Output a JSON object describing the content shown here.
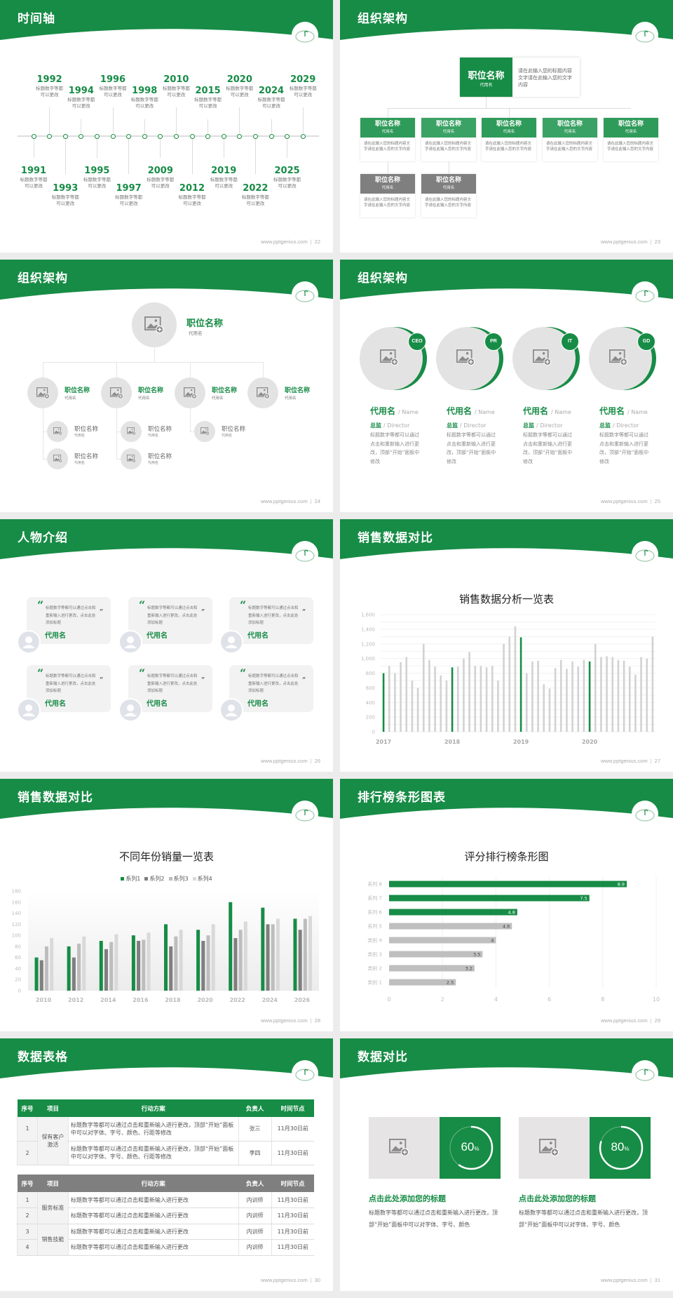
{
  "footer_url": "www.pptgenius.com",
  "colors": {
    "brand_green": "#178c46",
    "gray_dark": "#7f7f7f",
    "gray_light": "#e4e3e3",
    "background": "#ececec"
  },
  "slides": [
    {
      "title": "时间轴",
      "page": "22",
      "timeline": [
        {
          "year": "1991",
          "text": "标题数字等都可以更改"
        },
        {
          "year": "1992",
          "text": "标题数字等都可以更改"
        },
        {
          "year": "1993",
          "text": "标题数字等都可以更改"
        },
        {
          "year": "1994",
          "text": "标题数字等都可以更改"
        },
        {
          "year": "1995",
          "text": "标题数字等都可以更改"
        },
        {
          "year": "1996",
          "text": "标题数字等都可以更改"
        },
        {
          "year": "1997",
          "text": "标题数字等都可以更改"
        },
        {
          "year": "1998",
          "text": "标题数字等都可以更改"
        },
        {
          "year": "2009",
          "text": "标题数字等都可以更改"
        },
        {
          "year": "2010",
          "text": "标题数字等都可以更改"
        },
        {
          "year": "2012",
          "text": "标题数字等都可以更改"
        },
        {
          "year": "2015",
          "text": "标题数字等都可以更改"
        },
        {
          "year": "2019",
          "text": "标题数字等都可以更改"
        },
        {
          "year": "2020",
          "text": "标题数字等都可以更改"
        },
        {
          "year": "2022",
          "text": "标题数字等都可以更改"
        },
        {
          "year": "2024",
          "text": "标题数字等都可以更改"
        },
        {
          "year": "2025",
          "text": "标题数字等都可以更改"
        },
        {
          "year": "2029",
          "text": "标题数字等都可以更改"
        }
      ]
    },
    {
      "title": "组织架构",
      "page": "23",
      "top": {
        "title": "职位名称",
        "sub": "代用名",
        "desc": "请在此输入您的标题内容文字请在此输入您的文字内容"
      },
      "children": [
        {
          "title": "职位名称",
          "sub": "代用名",
          "desc": "请在此输入您的标题内容文字请在此输入您的文字内容"
        },
        {
          "title": "职位名称",
          "sub": "代用名",
          "desc": "请在此输入您的标题内容文字请在此输入您的文字内容"
        },
        {
          "title": "职位名称",
          "sub": "代用名",
          "desc": "请在此输入您的标题内容文字请在此输入您的文字内容"
        },
        {
          "title": "职位名称",
          "sub": "代用名",
          "desc": "请在此输入您的标题内容文字请在此输入您的文字内容"
        },
        {
          "title": "职位名称",
          "sub": "代用名",
          "desc": "请在此输入您的标题内容文字请在此输入您的文字内容"
        },
        {
          "title": "职位名称",
          "sub": "代用名",
          "desc": "请在此输入您的标题内容文字请在此输入您的文字内容"
        },
        {
          "title": "职位名称",
          "sub": "代用名",
          "desc": "请在此输入您的标题内容文字请在此输入您的文字内容"
        }
      ]
    },
    {
      "title": "组织架构",
      "page": "24",
      "top": {
        "title": "职位名称",
        "sub": "代用名"
      },
      "level2": [
        {
          "title": "职位名称",
          "sub": "代用名"
        },
        {
          "title": "职位名称",
          "sub": "代用名"
        },
        {
          "title": "职位名称",
          "sub": "代用名"
        },
        {
          "title": "职位名称",
          "sub": "代用名"
        }
      ],
      "level3": [
        {
          "title": "职位名称",
          "sub": "代用名"
        },
        {
          "title": "职位名称",
          "sub": "代用名"
        },
        {
          "title": "职位名称",
          "sub": "代用名"
        },
        {
          "title": "职位名称",
          "sub": "代用名"
        },
        {
          "title": "职位名称",
          "sub": "代用名"
        }
      ]
    },
    {
      "title": "组织架构",
      "page": "25",
      "people": [
        {
          "badge": "CEO",
          "name": "代用名",
          "name_en": "/ Name",
          "role": "总监",
          "role_en": "/  Director",
          "desc": "标题数字等都可以通过点击和重新输入进行更改，顶部“开始”面板中修改"
        },
        {
          "badge": "PR",
          "name": "代用名",
          "name_en": "/ Name",
          "role": "总监",
          "role_en": "/  Director",
          "desc": "标题数字等都可以通过点击和重新输入进行更改，顶部“开始”面板中修改"
        },
        {
          "badge": "IT",
          "name": "代用名",
          "name_en": "/ Name",
          "role": "总监",
          "role_en": "/  Director",
          "desc": "标题数字等都可以通过点击和重新输入进行更改，顶部“开始”面板中修改"
        },
        {
          "badge": "GD",
          "name": "代用名",
          "name_en": "/ Name",
          "role": "总监",
          "role_en": "/  Director",
          "desc": "标题数字等都可以通过点击和重新输入进行更改，顶部“开始”面板中修改"
        }
      ]
    },
    {
      "title": "人物介绍",
      "page": "26",
      "cards": [
        {
          "text": "标题数字等都可以通过点击和重新输入进行更改，点击此处添加标题",
          "name": "代用名"
        },
        {
          "text": "标题数字等都可以通过点击和重新输入进行更改，点击此处添加标题",
          "name": "代用名"
        },
        {
          "text": "标题数字等都可以通过点击和重新输入进行更改，点击此处添加标题",
          "name": "代用名"
        },
        {
          "text": "标题数字等都可以通过点击和重新输入进行更改，点击此处添加标题",
          "name": "代用名"
        },
        {
          "text": "标题数字等都可以通过点击和重新输入进行更改，点击此处添加标题",
          "name": "代用名"
        },
        {
          "text": "标题数字等都可以通过点击和重新输入进行更改，点击此处添加标题",
          "name": "代用名"
        }
      ]
    },
    {
      "title": "销售数据对比",
      "page": "27"
    },
    {
      "title": "销售数据对比",
      "page": "28"
    },
    {
      "title": "排行榜条形图表",
      "page": "29"
    },
    {
      "title": "数据表格",
      "page": "30",
      "table1": {
        "headers": [
          "序号",
          "项目",
          "行动方案",
          "负责人",
          "时间节点"
        ],
        "group": "保有客户激活",
        "rows": [
          {
            "no": "1",
            "plan": "标题数字等都可以通过点击和重新输入进行更改，顶部“开始”面板中可以对字体、字号、颜色、行距等修改",
            "owner": "张三",
            "date": "11月30日前"
          },
          {
            "no": "2",
            "plan": "标题数字等都可以通过点击和重新输入进行更改，顶部“开始”面板中可以对字体、字号、颜色、行距等修改",
            "owner": "李四",
            "date": "11月30日前"
          }
        ]
      },
      "table2": {
        "headers": [
          "序号",
          "项目",
          "行动方案",
          "负责人",
          "时间节点"
        ],
        "groups": [
          "服务标准",
          "销售技能"
        ],
        "rows": [
          {
            "no": "1",
            "plan": "标题数字等都可以通过点击和重新输入进行更改",
            "owner": "内训师",
            "date": "11月30日前"
          },
          {
            "no": "2",
            "plan": "标题数字等都可以通过点击和重新输入进行更改",
            "owner": "内训师",
            "date": "11月30日前"
          },
          {
            "no": "3",
            "plan": "标题数字等都可以通过点击和重新输入进行更改",
            "owner": "内训师",
            "date": "11月30日前"
          },
          {
            "no": "4",
            "plan": "标题数字等都可以通过点击和重新输入进行更改",
            "owner": "内训师",
            "date": "11月30日前"
          }
        ]
      }
    },
    {
      "title": "数据对比",
      "page": "31",
      "items": [
        {
          "percent": 60,
          "value": "60",
          "unit": "%",
          "heading": "点击此处添加您的标题",
          "desc": "标题数字等都可以通过点击和重新输入进行更改，顶部“开始”面板中可以对字体、字号、颜色"
        },
        {
          "percent": 80,
          "value": "80",
          "unit": "%",
          "heading": "点击此处添加您的标题",
          "desc": "标题数字等都可以通过点击和重新输入进行更改，顶部“开始”面板中可以对字体、字号、颜色"
        }
      ]
    }
  ],
  "chart_data": [
    {
      "type": "bar",
      "title": "销售数据分析一览表",
      "x_tick_labels": [
        "2017",
        "2018",
        "2019",
        "2020"
      ],
      "values": [
        800,
        900,
        800,
        950,
        1020,
        700,
        600,
        1200,
        980,
        890,
        770,
        700,
        880,
        890,
        1000,
        1090,
        900,
        900,
        880,
        900,
        700,
        1200,
        1300,
        1440,
        1290,
        800,
        960,
        970,
        650,
        590,
        870,
        980,
        860,
        960,
        890,
        980,
        960,
        1200,
        1020,
        1030,
        1020,
        980,
        970,
        890,
        780,
        1020,
        1000,
        1300
      ],
      "highlighted_indices": [
        0,
        12,
        24,
        36
      ],
      "colors": {
        "highlight": "#178c46",
        "default": "#d2d2d2"
      },
      "ylim": [
        0,
        1600
      ],
      "y_ticks": [
        "0",
        "200",
        "400",
        "600",
        "800",
        "1,000",
        "1,200",
        "1,400",
        "1,600"
      ],
      "grid": true
    },
    {
      "type": "bar",
      "title": "不同年份销量一览表",
      "categories": [
        "2010",
        "2012",
        "2014",
        "2016",
        "2018",
        "2020",
        "2022",
        "2024",
        "2026"
      ],
      "series": [
        {
          "name": "系列1",
          "color": "#178c46",
          "values": [
            60,
            80,
            90,
            100,
            120,
            110,
            160,
            150,
            130
          ]
        },
        {
          "name": "系列2",
          "color": "#7f7f7f",
          "values": [
            55,
            60,
            75,
            90,
            80,
            90,
            95,
            120,
            110
          ]
        },
        {
          "name": "系列3",
          "color": "#bdbdbd",
          "values": [
            80,
            85,
            88,
            92,
            98,
            100,
            110,
            120,
            130
          ]
        },
        {
          "name": "系列4",
          "color": "#d9d9d9",
          "values": [
            95,
            98,
            102,
            105,
            110,
            120,
            125,
            130,
            135
          ]
        }
      ],
      "ylim": [
        0,
        180
      ],
      "y_ticks": [
        "0",
        "20",
        "40",
        "60",
        "80",
        "100",
        "120",
        "140",
        "160",
        "180"
      ],
      "legend": "top"
    },
    {
      "type": "bar",
      "orientation": "horizontal",
      "title": "评分排行榜条形图",
      "categories": [
        "系列 8",
        "系列 7",
        "系列 6",
        "系列 5",
        "类别 4",
        "类别 3",
        "类别 2",
        "类别 1"
      ],
      "values": [
        8.9,
        7.5,
        4.8,
        4.6,
        4,
        3.5,
        3.2,
        2.5
      ],
      "value_labels": [
        "8.9",
        "7.5",
        "4.8",
        "4.6",
        "4",
        "3.5",
        "3.2",
        "2.5"
      ],
      "highlighted_indices": [
        0,
        1,
        2
      ],
      "colors": {
        "highlight": "#178c46",
        "default": "#bfbfbf"
      },
      "xlim": [
        0,
        10
      ],
      "x_ticks": [
        "0",
        "2",
        "4",
        "6",
        "8",
        "10"
      ],
      "grid": true
    }
  ]
}
